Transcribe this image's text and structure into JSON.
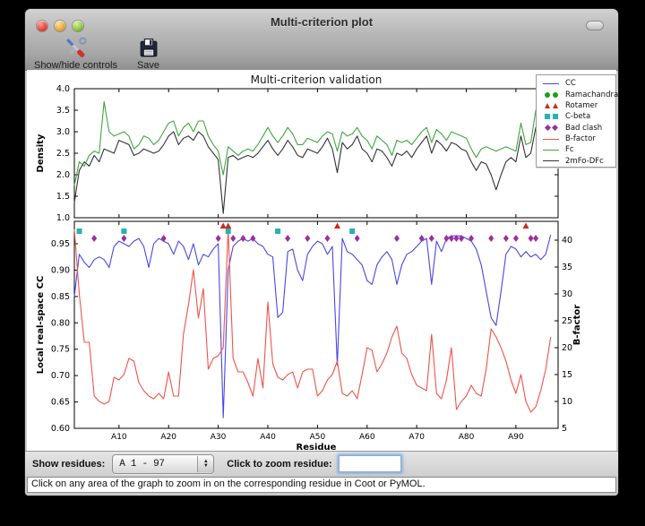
{
  "window": {
    "title": "Multi-criterion plot"
  },
  "toolbar": {
    "buttons": [
      {
        "label": "Show/hide controls",
        "icon": "tools-icon"
      },
      {
        "label": "Save",
        "icon": "save-icon"
      }
    ]
  },
  "controls": {
    "show_residues_label": "Show residues:",
    "residue_range_value": "A  1 - 97",
    "zoom_label": "Click to zoom residue:",
    "zoom_input_value": ""
  },
  "status_bar": {
    "message": "Click on any area of the graph to zoom in on the corresponding residue in Coot or PyMOL."
  },
  "legend": {
    "entries": [
      {
        "label": "CC",
        "type": "line",
        "color": "#4747e8"
      },
      {
        "label": "Ramachandran",
        "type": "circle",
        "color": "#1f9c1f"
      },
      {
        "label": "Rotamer",
        "type": "triangle",
        "color": "#cc2a1e"
      },
      {
        "label": "C-beta",
        "type": "square",
        "color": "#26b3ae"
      },
      {
        "label": "Bad clash",
        "type": "diamond",
        "color": "#9c2f9c"
      },
      {
        "label": "B-factor",
        "type": "line",
        "color": "#f05349"
      },
      {
        "label": "Fc",
        "type": "line",
        "color": "#3fa73f"
      },
      {
        "label": "2mFo-DFc",
        "type": "line",
        "color": "#333333"
      }
    ]
  },
  "chart_data": [
    {
      "type": "line",
      "title": "Multi-criterion validation",
      "ylabel": "Density",
      "ylim": [
        1.0,
        4.0
      ],
      "yticks": [
        "1.0",
        "1.5",
        "2.0",
        "2.5",
        "3.0",
        "3.5",
        "4.0"
      ],
      "x_range": [
        1,
        97
      ],
      "series": [
        {
          "name": "Fc",
          "color": "#3fa73f",
          "values": [
            1.75,
            2.3,
            2.2,
            2.45,
            2.55,
            2.5,
            3.7,
            3.0,
            2.9,
            2.95,
            3.0,
            2.9,
            2.6,
            2.7,
            2.9,
            2.85,
            2.7,
            2.8,
            3.0,
            3.2,
            3.25,
            2.9,
            3.1,
            3.2,
            3.0,
            3.25,
            3.25,
            2.9,
            2.7,
            2.55,
            2.0,
            2.65,
            2.55,
            2.45,
            2.55,
            2.6,
            2.55,
            2.7,
            2.9,
            3.1,
            2.9,
            2.75,
            2.9,
            3.1,
            2.95,
            2.7,
            2.7,
            2.85,
            2.8,
            2.75,
            2.9,
            3.0,
            2.95,
            2.55,
            3.0,
            2.9,
            2.95,
            3.1,
            2.9,
            2.8,
            2.6,
            2.9,
            2.8,
            2.7,
            2.45,
            2.8,
            2.75,
            2.8,
            2.7,
            2.85,
            3.0,
            3.1,
            2.75,
            3.05,
            2.95,
            2.8,
            3.0,
            2.95,
            2.9,
            2.85,
            2.6,
            2.4,
            2.6,
            2.65,
            2.6,
            2.55,
            2.6,
            2.65,
            2.6,
            2.55,
            3.2,
            2.7,
            2.75,
            3.5,
            3.0,
            2.65,
            3.0
          ]
        },
        {
          "name": "2mFo-DFc",
          "color": "#333333",
          "values": [
            1.35,
            2.1,
            2.3,
            2.2,
            2.45,
            2.3,
            2.6,
            2.55,
            2.5,
            2.8,
            2.75,
            2.7,
            2.45,
            2.5,
            2.6,
            2.55,
            2.5,
            2.55,
            2.7,
            2.9,
            3.0,
            2.7,
            2.85,
            2.9,
            2.8,
            3.0,
            2.9,
            2.65,
            2.5,
            2.35,
            1.1,
            2.4,
            2.45,
            2.35,
            2.4,
            2.45,
            2.4,
            2.5,
            2.65,
            2.8,
            2.6,
            2.45,
            2.6,
            2.8,
            2.65,
            2.45,
            2.4,
            2.6,
            2.55,
            2.5,
            2.65,
            2.85,
            2.6,
            2.05,
            2.75,
            2.6,
            2.7,
            2.9,
            2.6,
            2.5,
            2.3,
            2.6,
            2.55,
            2.4,
            2.2,
            2.5,
            2.45,
            2.55,
            2.4,
            2.6,
            2.75,
            2.9,
            2.5,
            2.8,
            2.7,
            2.55,
            2.75,
            2.7,
            2.6,
            2.55,
            2.3,
            2.1,
            2.3,
            2.25,
            2.0,
            1.65,
            2.0,
            2.3,
            2.4,
            2.3,
            2.9,
            2.4,
            2.5,
            3.1,
            2.7,
            2.3,
            2.85
          ]
        }
      ]
    },
    {
      "type": "line+markers",
      "xlabel": "Residue",
      "ylabel_left": "Local real-space CC",
      "ylabel_right": "B-factor",
      "ylim_left": [
        0.6,
        0.9925
      ],
      "ylim_right": [
        5,
        43.5
      ],
      "yticks_left": [
        "0.60",
        "0.65",
        "0.70",
        "0.75",
        "0.80",
        "0.85",
        "0.90",
        "0.95"
      ],
      "yticks_right": [
        "5",
        "10",
        "15",
        "20",
        "25",
        "30",
        "35",
        "40"
      ],
      "xtick_residues": [
        10,
        20,
        30,
        40,
        50,
        60,
        70,
        80,
        90
      ],
      "xtick_labels": [
        "A10",
        "A20",
        "A30",
        "A40",
        "A50",
        "A60",
        "A70",
        "A80",
        "A90"
      ],
      "series": [
        {
          "name": "CC",
          "axis": "left",
          "color": "#4747e8",
          "values": [
            0.85,
            0.93,
            0.915,
            0.905,
            0.92,
            0.925,
            0.92,
            0.905,
            0.945,
            0.955,
            0.95,
            0.945,
            0.955,
            0.96,
            0.945,
            0.905,
            0.95,
            0.96,
            0.955,
            0.95,
            0.93,
            0.955,
            0.945,
            0.92,
            0.95,
            0.91,
            0.93,
            0.925,
            0.94,
            0.95,
            0.62,
            0.9,
            0.945,
            0.955,
            0.96,
            0.955,
            0.96,
            0.95,
            0.945,
            0.93,
            0.925,
            0.81,
            0.82,
            0.935,
            0.94,
            0.9,
            0.88,
            0.93,
            0.945,
            0.955,
            0.95,
            0.93,
            0.945,
            0.72,
            0.96,
            0.935,
            0.93,
            0.92,
            0.91,
            0.88,
            0.873,
            0.91,
            0.925,
            0.935,
            0.92,
            0.873,
            0.91,
            0.93,
            0.935,
            0.945,
            0.955,
            0.96,
            0.873,
            0.955,
            0.935,
            0.96,
            0.965,
            0.965,
            0.965,
            0.96,
            0.955,
            0.94,
            0.91,
            0.86,
            0.81,
            0.795,
            0.86,
            0.93,
            0.945,
            0.94,
            0.925,
            0.935,
            0.925,
            0.93,
            0.92,
            0.93,
            0.967
          ]
        },
        {
          "name": "B-factor",
          "axis": "right",
          "color": "#f05349",
          "values": [
            42,
            30,
            21,
            21,
            11,
            10,
            9.5,
            10,
            14.5,
            14,
            15,
            18,
            17.5,
            13.5,
            12,
            11,
            10.5,
            11.5,
            10.5,
            15.5,
            11,
            11,
            22.5,
            28,
            34.5,
            25.5,
            31,
            16,
            18,
            18.5,
            20,
            42,
            18,
            15.5,
            15.5,
            13.5,
            11,
            18,
            12.5,
            28.5,
            17,
            14.5,
            14,
            15,
            15.5,
            12.5,
            15.5,
            16,
            16,
            11,
            12,
            14,
            15,
            17.5,
            11.5,
            11,
            12,
            10.5,
            15,
            20,
            19.5,
            15.5,
            17,
            19,
            22,
            24,
            19,
            18,
            15,
            13,
            12.5,
            12,
            22.5,
            11.5,
            10.5,
            14,
            20,
            8.5,
            10,
            11,
            13,
            11.5,
            11,
            16,
            23.5,
            22,
            20,
            17.5,
            14,
            11.5,
            15,
            10,
            8,
            9,
            12,
            16,
            22
          ]
        }
      ],
      "markers": [
        {
          "name": "Ramachandran",
          "shape": "circle",
          "color": "#1f9c1f",
          "residues": []
        },
        {
          "name": "Rotamer",
          "shape": "triangle",
          "color": "#cc2a1e",
          "residues": [
            31,
            32,
            54,
            92
          ]
        },
        {
          "name": "C-beta",
          "shape": "square",
          "color": "#26b3ae",
          "residues": [
            2,
            11,
            32,
            42,
            57
          ]
        },
        {
          "name": "Bad clash",
          "shape": "diamond",
          "color": "#9c2f9c",
          "residues": [
            5,
            11,
            19,
            30,
            33,
            35,
            37,
            44,
            48,
            52,
            58,
            66,
            71,
            73,
            76,
            77,
            78,
            79,
            81,
            85,
            88,
            90,
            93,
            94
          ]
        }
      ]
    }
  ]
}
